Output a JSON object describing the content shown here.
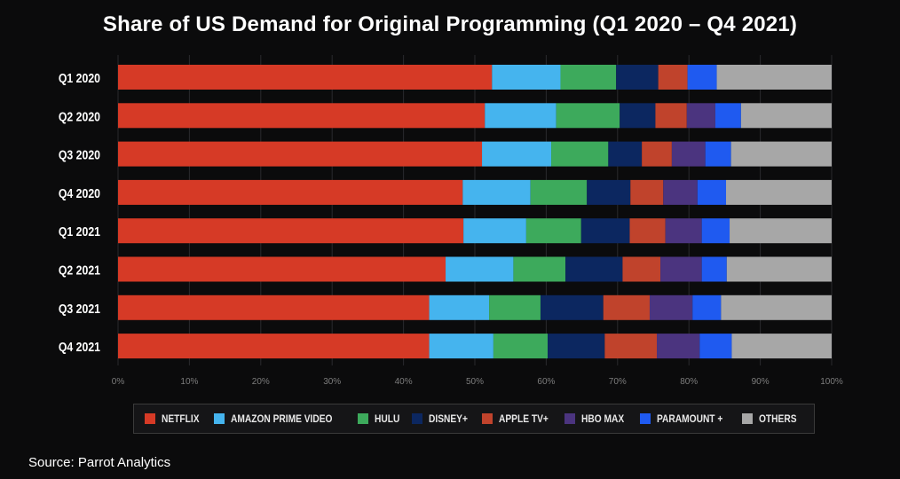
{
  "title": "Share of US Demand for Original Programming (Q1 2020 – Q4 2021)",
  "source": "Source: Parrot Analytics",
  "chart_data": {
    "type": "bar",
    "orientation": "horizontal",
    "stacked": true,
    "categories": [
      "Q1 2020",
      "Q2 2020",
      "Q3 2020",
      "Q4 2020",
      "Q1 2021",
      "Q2 2021",
      "Q3 2021",
      "Q4 2021"
    ],
    "xlim": [
      0,
      100
    ],
    "xticks": [
      "0%",
      "10%",
      "20%",
      "30%",
      "40%",
      "50%",
      "60%",
      "70%",
      "80%",
      "90%",
      "100%"
    ],
    "grid": true,
    "legend_position": "bottom",
    "series": [
      {
        "name": "NETFLIX",
        "color": "#d63a26",
        "values": [
          52.4,
          51.4,
          51.0,
          48.3,
          48.4,
          45.9,
          43.6,
          43.6
        ]
      },
      {
        "name": "AMAZON PRIME VIDEO",
        "color": "#45b4ee",
        "values": [
          9.6,
          10.0,
          9.7,
          9.5,
          8.8,
          9.5,
          8.4,
          9.0
        ]
      },
      {
        "name": "HULU",
        "color": "#3daa5c",
        "values": [
          7.8,
          8.9,
          8.0,
          7.9,
          7.7,
          7.3,
          7.2,
          7.6
        ]
      },
      {
        "name": "DISNEY+",
        "color": "#0c2760",
        "values": [
          5.9,
          5.0,
          4.7,
          6.1,
          6.8,
          8.0,
          8.8,
          8.0
        ]
      },
      {
        "name": "APPLE TV+",
        "color": "#c0432c",
        "values": [
          4.1,
          4.4,
          4.2,
          4.6,
          5.0,
          5.3,
          6.5,
          7.3
        ]
      },
      {
        "name": "HBO MAX",
        "color": "#4b347f",
        "values": [
          0.0,
          4.0,
          4.7,
          4.8,
          5.1,
          5.8,
          6.0,
          6.0
        ]
      },
      {
        "name": "PARAMOUNT +",
        "color": "#1f5af0",
        "values": [
          4.1,
          3.6,
          3.6,
          4.0,
          3.9,
          3.5,
          4.0,
          4.5
        ]
      },
      {
        "name": "OTHERS",
        "color": "#a7a7a7",
        "values": [
          16.1,
          12.7,
          14.1,
          14.8,
          14.3,
          14.7,
          15.5,
          14.0
        ]
      }
    ]
  }
}
